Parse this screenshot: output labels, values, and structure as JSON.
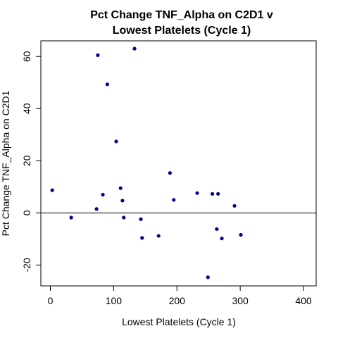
{
  "chart_data": {
    "type": "scatter",
    "title_lines": [
      "Pct Change TNF_Alpha on C2D1 v",
      "Lowest Platelets (Cycle 1)"
    ],
    "xlabel": "Lowest Platelets (Cycle 1)",
    "ylabel": "Pct Change TNF_Alpha on C2D1",
    "xlim": [
      -15,
      420
    ],
    "ylim": [
      -28,
      66
    ],
    "xticks": [
      0,
      100,
      200,
      300,
      400
    ],
    "yticks": [
      -20,
      0,
      20,
      40,
      60
    ],
    "xtick_labels": [
      "0",
      "100",
      "200",
      "300",
      "400"
    ],
    "ytick_labels": [
      "-20",
      "0",
      "20",
      "40",
      "60"
    ],
    "reference_line_y": 0,
    "grid": false,
    "point_color": "#00008B",
    "points": [
      {
        "x": 3,
        "y": 8.7
      },
      {
        "x": 33,
        "y": -1.8
      },
      {
        "x": 73,
        "y": 1.5
      },
      {
        "x": 75,
        "y": 60.5
      },
      {
        "x": 83,
        "y": 7.0
      },
      {
        "x": 90,
        "y": 49.3
      },
      {
        "x": 104,
        "y": 27.4
      },
      {
        "x": 111,
        "y": 9.5
      },
      {
        "x": 114,
        "y": 4.7
      },
      {
        "x": 116,
        "y": -1.8
      },
      {
        "x": 133,
        "y": 63.0
      },
      {
        "x": 143,
        "y": -2.4
      },
      {
        "x": 145,
        "y": -9.6
      },
      {
        "x": 171,
        "y": -8.8
      },
      {
        "x": 189,
        "y": 15.3
      },
      {
        "x": 195,
        "y": 5.0
      },
      {
        "x": 232,
        "y": 7.6
      },
      {
        "x": 249,
        "y": -24.7
      },
      {
        "x": 256,
        "y": 7.3
      },
      {
        "x": 263,
        "y": -6.2
      },
      {
        "x": 265,
        "y": 7.3
      },
      {
        "x": 271,
        "y": -9.8
      },
      {
        "x": 291,
        "y": 2.7
      },
      {
        "x": 301,
        "y": -8.4
      }
    ]
  }
}
